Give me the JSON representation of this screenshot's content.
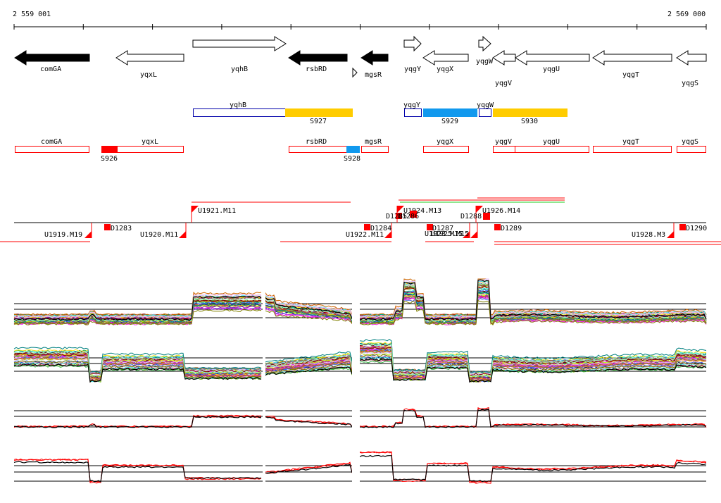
{
  "coords": {
    "start": "2 559 001",
    "end": "2 569 000"
  },
  "colors": {
    "black": "#000000",
    "red": "#ff0000",
    "blue": "#0000aa",
    "yellow": "#ffcc00",
    "cyan": "#1199ee",
    "green": "#22cc22"
  },
  "genes": [
    {
      "name": "comGA",
      "strand": "-",
      "filled": true
    },
    {
      "name": "yqxL",
      "strand": "-",
      "filled": false
    },
    {
      "name": "yqhB",
      "strand": "+",
      "filled": false
    },
    {
      "name": "rsbRD",
      "strand": "-",
      "filled": true
    },
    {
      "name": "mgsR",
      "strand": "-",
      "filled": true
    },
    {
      "name": "yqgY",
      "strand": "+",
      "filled": false
    },
    {
      "name": "yqgX",
      "strand": "-",
      "filled": false
    },
    {
      "name": "yqgW",
      "strand": "+",
      "filled": false
    },
    {
      "name": "yqgV",
      "strand": "-",
      "filled": false
    },
    {
      "name": "yqgU",
      "strand": "-",
      "filled": false
    },
    {
      "name": "yqgT",
      "strand": "-",
      "filled": false
    },
    {
      "name": "yqgS",
      "strand": "-",
      "filled": false
    }
  ],
  "operon_plus": [
    {
      "label": "yqhB",
      "kind": "gene"
    },
    {
      "label": "S927",
      "kind": "segment"
    },
    {
      "label": "yqgY",
      "kind": "gene"
    },
    {
      "label": "S929",
      "kind": "segment"
    },
    {
      "label": "yqgW",
      "kind": "gene"
    },
    {
      "label": "S930",
      "kind": "segment"
    }
  ],
  "operon_minus": [
    {
      "label": "comGA",
      "kind": "gene"
    },
    {
      "label": "S926",
      "kind": "segment"
    },
    {
      "label": "yqxL",
      "kind": "gene"
    },
    {
      "label": "rsbRD",
      "kind": "gene"
    },
    {
      "label": "S928",
      "kind": "segment"
    },
    {
      "label": "mgsR",
      "kind": "gene"
    },
    {
      "label": "yqgX",
      "kind": "gene"
    },
    {
      "label": "yqgV",
      "kind": "gene"
    },
    {
      "label": "yqgU",
      "kind": "gene"
    },
    {
      "label": "yqgT",
      "kind": "gene"
    },
    {
      "label": "yqgS",
      "kind": "gene"
    }
  ],
  "tss_upper": [
    "U1921.M11",
    "D1285",
    "U1924.M13",
    "D1286",
    "U1926.M14",
    "D1288"
  ],
  "tss_lower": [
    "U1919.M19",
    "D1283",
    "U1920.M11",
    "U1922.M11",
    "D1284",
    "D1287",
    "U1923.M15",
    "U1925.M15",
    "D1289",
    "U1928.M3",
    "D1290"
  ],
  "expression_panels": [
    "plus-strand-all-conditions",
    "minus-strand-all-conditions",
    "plus-strand-summary",
    "minus-strand-summary"
  ]
}
